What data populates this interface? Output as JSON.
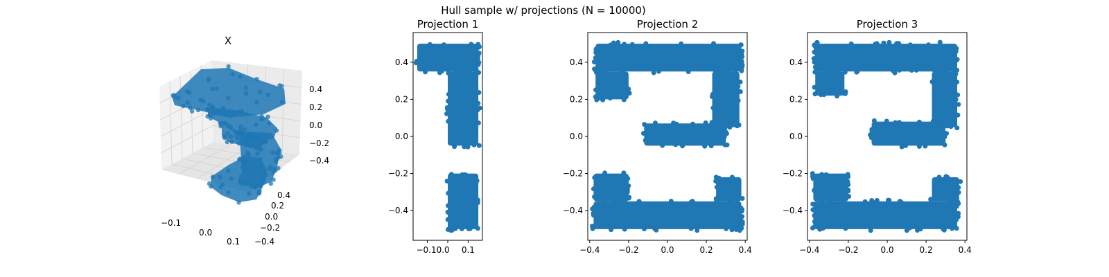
{
  "figure": {
    "suptitle": "Hull sample w/ projections (N = 10000)"
  },
  "colors": {
    "points": "#1f77b4",
    "pane": "#f2f2f2",
    "grid": "#d6d6d6",
    "axis": "#000000"
  },
  "chart_data": [
    {
      "type": "scatter",
      "subtype": "3d",
      "title": "X",
      "xticks": [
        "−0.1",
        "0.0",
        "0.1"
      ],
      "yticks": [
        "0.4",
        "0.2",
        "0.0",
        "−0.2",
        "−0.4"
      ],
      "zticks": [
        "0.4",
        "0.2",
        "0.0",
        "−0.2",
        "−0.4"
      ],
      "xlim": [
        -0.15,
        0.15
      ],
      "ylim": [
        -0.5,
        0.5
      ],
      "zlim": [
        -0.5,
        0.5
      ]
    },
    {
      "type": "scatter",
      "title": "Projection 1",
      "xlim": [
        -0.17,
        0.17
      ],
      "ylim": [
        -0.56,
        0.56
      ],
      "xticks": [
        -0.1,
        0.0,
        0.1
      ],
      "xticklabels": [
        "−0.10.0",
        "",
        "0.1"
      ],
      "yticks": [
        0.4,
        0.2,
        0.0,
        -0.2,
        -0.4
      ],
      "yticklabels": [
        "0.4",
        "0.2",
        "0.0",
        "−0.2",
        "−0.4"
      ],
      "regions": [
        {
          "x": [
            -0.15,
            0.15
          ],
          "y": [
            0.35,
            0.5
          ]
        },
        {
          "x": [
            0.0,
            0.15
          ],
          "y": [
            -0.05,
            0.35
          ]
        },
        {
          "x": [
            0.0,
            0.15
          ],
          "y": [
            -0.5,
            -0.2
          ]
        }
      ]
    },
    {
      "type": "scatter",
      "title": "Projection 2",
      "xlim": [
        -0.41,
        0.41
      ],
      "ylim": [
        -0.56,
        0.56
      ],
      "xticks": [
        -0.4,
        -0.2,
        0.0,
        0.2,
        0.4
      ],
      "xticklabels": [
        "−0.4",
        "−0.2",
        "0.0",
        "0.2",
        "0.4"
      ],
      "yticks": [
        0.4,
        0.2,
        0.0,
        -0.2,
        -0.4
      ],
      "yticklabels": [
        "0.4",
        "0.2",
        "0.0",
        "−0.2",
        "−0.4"
      ],
      "regions": [
        {
          "x": [
            -0.37,
            0.38
          ],
          "y": [
            0.35,
            0.5
          ]
        },
        {
          "x": [
            -0.37,
            -0.2
          ],
          "y": [
            0.2,
            0.35
          ]
        },
        {
          "x": [
            0.23,
            0.37
          ],
          "y": [
            0.05,
            0.35
          ]
        },
        {
          "x": [
            -0.12,
            0.3
          ],
          "y": [
            -0.05,
            0.07
          ]
        },
        {
          "x": [
            -0.38,
            -0.2
          ],
          "y": [
            -0.35,
            -0.2
          ]
        },
        {
          "x": [
            -0.38,
            0.38
          ],
          "y": [
            -0.5,
            -0.35
          ]
        },
        {
          "x": [
            0.25,
            0.38
          ],
          "y": [
            -0.35,
            -0.22
          ]
        }
      ]
    },
    {
      "type": "scatter",
      "title": "Projection 3",
      "xlim": [
        -0.41,
        0.41
      ],
      "ylim": [
        -0.56,
        0.56
      ],
      "xticks": [
        -0.4,
        -0.2,
        0.0,
        0.2,
        0.4
      ],
      "xticklabels": [
        "−0.4",
        "−0.2",
        "0.0",
        "0.2",
        "0.4"
      ],
      "yticks": [
        0.4,
        0.2,
        0.0,
        -0.2,
        -0.4
      ],
      "yticklabels": [
        "0.4",
        "0.2",
        "0.0",
        "−0.2",
        "−0.4"
      ],
      "regions": [
        {
          "x": [
            -0.37,
            0.36
          ],
          "y": [
            0.35,
            0.5
          ]
        },
        {
          "x": [
            -0.37,
            -0.22
          ],
          "y": [
            0.22,
            0.35
          ]
        },
        {
          "x": [
            0.23,
            0.36
          ],
          "y": [
            0.05,
            0.35
          ]
        },
        {
          "x": [
            -0.08,
            0.3
          ],
          "y": [
            -0.05,
            0.08
          ]
        },
        {
          "x": [
            -0.38,
            -0.2
          ],
          "y": [
            -0.35,
            -0.2
          ]
        },
        {
          "x": [
            -0.38,
            0.36
          ],
          "y": [
            -0.5,
            -0.35
          ]
        },
        {
          "x": [
            0.23,
            0.37
          ],
          "y": [
            -0.35,
            -0.22
          ]
        }
      ]
    }
  ]
}
